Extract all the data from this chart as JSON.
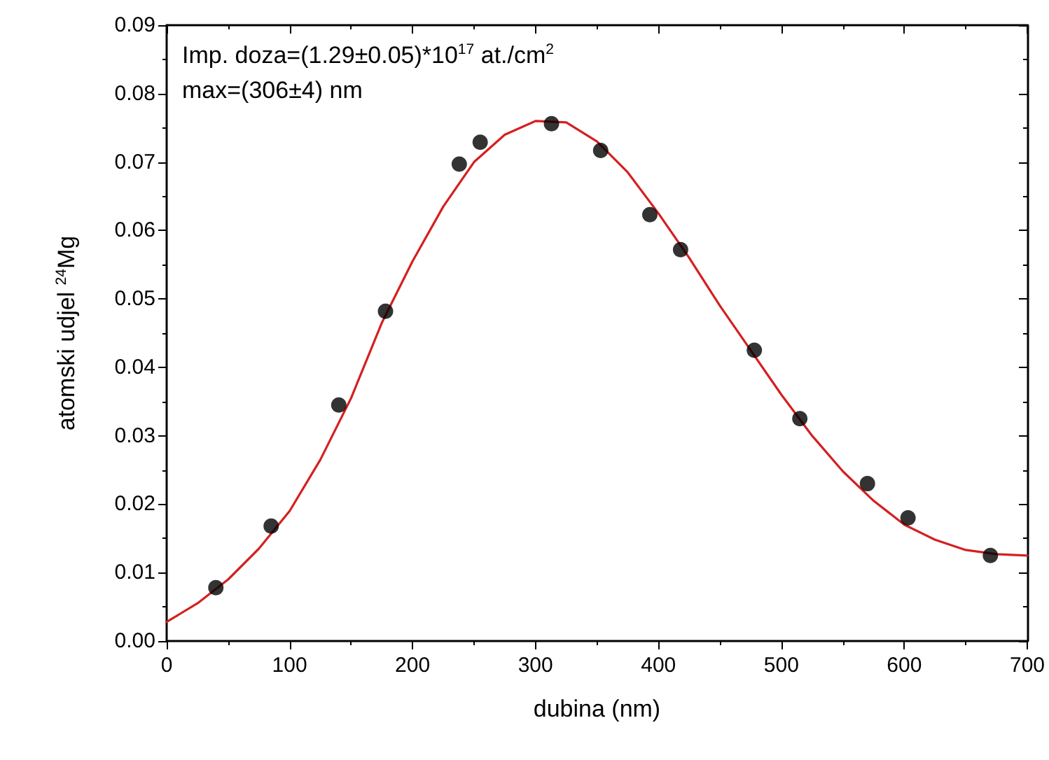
{
  "chart_data": {
    "type": "scatter",
    "xlabel": "dubina (nm)",
    "ylabel": "atomski udjel $^{24}$Mg",
    "annotations": [
      "Imp. doza=(1.29±0.05)*10$^{17}$ at./cm$^{2}$",
      "max=(306±4) nm"
    ],
    "xlim": [
      0,
      700
    ],
    "xticks": [
      0,
      100,
      200,
      300,
      400,
      500,
      600,
      700
    ],
    "ylim": [
      0,
      0.09
    ],
    "yticks": [
      {
        "value": 0,
        "label": "0.00"
      },
      {
        "value": 0.01,
        "label": "0.01"
      },
      {
        "value": 0.02,
        "label": "0.02"
      },
      {
        "value": 0.03,
        "label": "0.03"
      },
      {
        "value": 0.04,
        "label": "0.04"
      },
      {
        "value": 0.05,
        "label": "0.05"
      },
      {
        "value": 0.06,
        "label": "0.06"
      },
      {
        "value": 0.07,
        "label": "0.07"
      },
      {
        "value": 0.08,
        "label": "0.08"
      },
      {
        "value": 0.09,
        "label": "0.09"
      }
    ],
    "series": [
      {
        "color": "#000000",
        "marker": "circle",
        "x": [
          40,
          85,
          140,
          178,
          238,
          255,
          313,
          353,
          393,
          418,
          478,
          515,
          570,
          603,
          670
        ],
        "values": [
          0.0078,
          0.0168,
          0.0345,
          0.0482,
          0.0697,
          0.0729,
          0.0756,
          0.0717,
          0.0623,
          0.0572,
          0.0425,
          0.0325,
          0.023,
          0.018,
          0.0125
        ]
      },
      {
        "type": "line",
        "color": "#d42020",
        "marker": "none",
        "line_style": "solid",
        "x": [
          0,
          25,
          50,
          75,
          100,
          125,
          150,
          175,
          200,
          225,
          250,
          275,
          300,
          325,
          350,
          375,
          400,
          425,
          450,
          475,
          500,
          525,
          550,
          575,
          600,
          625,
          650,
          675,
          700
        ],
        "values": [
          0.0028,
          0.0055,
          0.009,
          0.0135,
          0.019,
          0.0265,
          0.0355,
          0.0465,
          0.0555,
          0.0635,
          0.07,
          0.074,
          0.076,
          0.0758,
          0.073,
          0.0685,
          0.0625,
          0.056,
          0.049,
          0.0425,
          0.036,
          0.03,
          0.0248,
          0.0205,
          0.017,
          0.0148,
          0.0133,
          0.0127,
          0.0125
        ]
      }
    ]
  }
}
